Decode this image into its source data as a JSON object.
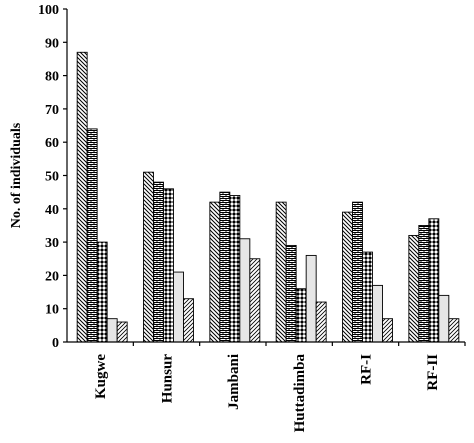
{
  "chart_data": {
    "type": "bar",
    "title": "",
    "xlabel": "",
    "ylabel": "No. of individuals",
    "ylim": [
      0,
      100
    ],
    "yticks": [
      0,
      10,
      20,
      30,
      40,
      50,
      60,
      70,
      80,
      90,
      100
    ],
    "grid": false,
    "categories": [
      "Kugwe",
      "Hunsur",
      "Jambani",
      "Huttadimba",
      "RF-I",
      "RF-II"
    ],
    "series": [
      {
        "values": [
          87,
          51,
          42,
          42,
          39,
          32
        ],
        "pattern": "diagonal-back"
      },
      {
        "values": [
          64,
          48,
          45,
          29,
          42,
          35
        ],
        "pattern": "brick"
      },
      {
        "values": [
          30,
          46,
          44,
          16,
          27,
          37
        ],
        "pattern": "diamond-check"
      },
      {
        "values": [
          7,
          21,
          31,
          26,
          17,
          14
        ],
        "pattern": "light-solid"
      },
      {
        "values": [
          6,
          13,
          25,
          12,
          7,
          7
        ],
        "pattern": "diagonal-forward"
      }
    ]
  }
}
